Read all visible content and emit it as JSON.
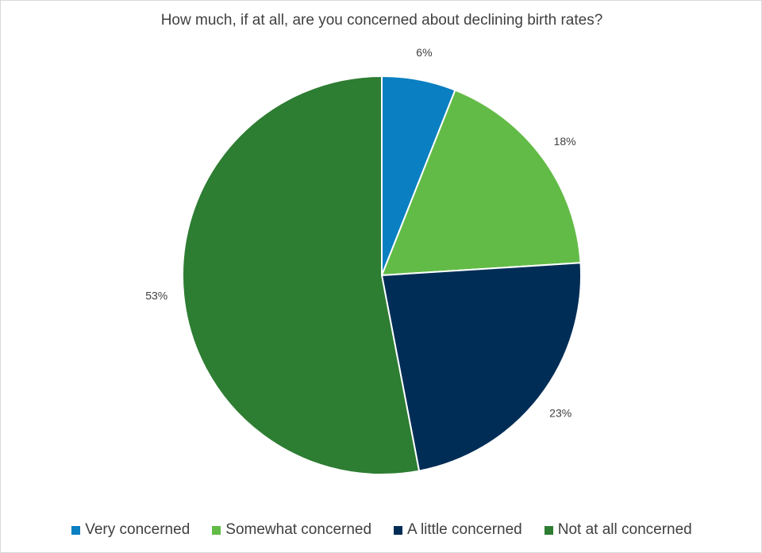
{
  "chart_data": {
    "type": "pie",
    "title": "How much, if at all, are you concerned about declining birth rates?",
    "categories": [
      "Very concerned",
      "Somewhat concerned",
      "A little concerned",
      "Not at all concerned"
    ],
    "values": [
      6,
      18,
      23,
      53
    ],
    "data_labels": [
      "6%",
      "18%",
      "23%",
      "53%"
    ],
    "colors": [
      "#0a7fc1",
      "#62bb46",
      "#002d56",
      "#2d7d32"
    ],
    "legend_position": "bottom",
    "start_angle": "12 o'clock",
    "direction": "clockwise"
  }
}
